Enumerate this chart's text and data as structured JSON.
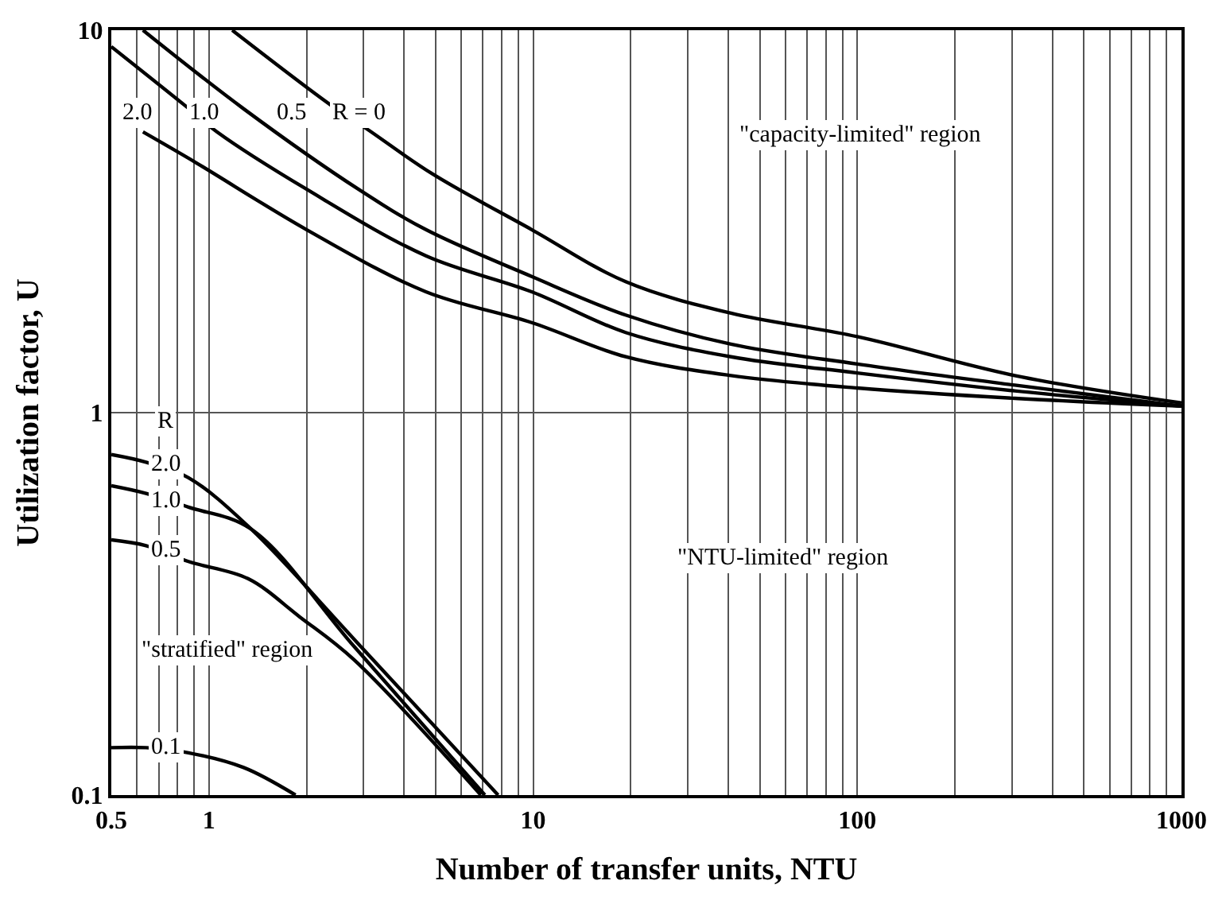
{
  "chart_data": {
    "type": "line",
    "xlabel": "Number of transfer units, NTU",
    "ylabel": "Utilization factor, U",
    "log": "xy",
    "grid": true,
    "line_style": "solid",
    "marker": "none",
    "xlim": [
      0.5,
      1000
    ],
    "ylim": [
      0.1,
      10
    ],
    "yticks": [
      0.1,
      1,
      10
    ],
    "xticks": [
      0.5,
      {
        "value": 0.6,
        "label": null
      },
      {
        "value": 0.7,
        "label": null
      },
      {
        "value": 0.8,
        "label": null
      },
      {
        "value": 0.9,
        "label": null
      },
      1,
      {
        "value": 2,
        "label": null
      },
      {
        "value": 3,
        "label": null
      },
      {
        "value": 4,
        "label": null
      },
      {
        "value": 5,
        "label": null
      },
      {
        "value": 6,
        "label": null
      },
      {
        "value": 7,
        "label": null
      },
      {
        "value": 8,
        "label": null
      },
      {
        "value": 9,
        "label": null
      },
      10,
      {
        "value": 20,
        "label": null
      },
      {
        "value": 30,
        "label": null
      },
      {
        "value": 40,
        "label": null
      },
      {
        "value": 50,
        "label": null
      },
      {
        "value": 60,
        "label": null
      },
      {
        "value": 70,
        "label": null
      },
      {
        "value": 80,
        "label": null
      },
      {
        "value": 90,
        "label": null
      },
      100,
      {
        "value": 200,
        "label": null
      },
      {
        "value": 300,
        "label": null
      },
      {
        "value": 400,
        "label": null
      },
      {
        "value": 500,
        "label": null
      },
      {
        "value": 600,
        "label": null
      },
      {
        "value": 700,
        "label": null
      },
      {
        "value": 800,
        "label": null
      },
      {
        "value": 900,
        "label": null
      },
      1000
    ],
    "series": [
      {
        "color": "#000000",
        "x": [
          1.18,
          2.39,
          3.06,
          4.89,
          9.9,
          19.3,
          40.8,
          100,
          306,
          1000
        ],
        "values": [
          10,
          6.35,
          5.53,
          4.21,
          3.01,
          2.2,
          1.82,
          1.58,
          1.25,
          1.06
        ]
      },
      {
        "color": "#000000",
        "x": [
          0.626,
          1.28,
          2.89,
          4.67,
          9.9,
          19.3,
          40.8,
          100,
          306,
          1000
        ],
        "values": [
          10,
          6.23,
          3.84,
          3.01,
          2.27,
          1.8,
          1.51,
          1.34,
          1.18,
          1.04
        ]
      },
      {
        "color": "#000000",
        "x": [
          0.5,
          0.845,
          1.06,
          2.0,
          4.67,
          9.9,
          19.3,
          40.8,
          100,
          306,
          1000
        ],
        "values": [
          9.06,
          6.35,
          5.42,
          3.84,
          2.57,
          2.07,
          1.62,
          1.4,
          1.27,
          1.14,
          1.04
        ]
      },
      {
        "color": "#000000",
        "x": [
          0.626,
          0.914,
          2.0,
          4.67,
          9.9,
          19.3,
          40.8,
          100,
          306,
          1000
        ],
        "values": [
          5.42,
          4.5,
          3.01,
          2.07,
          1.72,
          1.4,
          1.25,
          1.16,
          1.09,
          1.04
        ]
      },
      {
        "color": "#000000",
        "x": [
          0.5,
          0.64,
          0.865,
          1.35,
          2.8,
          7.8
        ],
        "values": [
          0.777,
          0.742,
          0.676,
          0.496,
          0.256,
          0.1
        ]
      },
      {
        "color": "#000000",
        "x": [
          0.5,
          0.64,
          0.865,
          1.35,
          2.8,
          7.1
        ],
        "values": [
          0.644,
          0.615,
          0.566,
          0.496,
          0.245,
          0.1
        ]
      },
      {
        "color": "#000000",
        "x": [
          0.5,
          0.64,
          0.865,
          1.32,
          1.91,
          2.8,
          6.9
        ],
        "values": [
          0.465,
          0.449,
          0.408,
          0.368,
          0.292,
          0.226,
          0.1
        ]
      },
      {
        "color": "#000000",
        "x": [
          0.5,
          0.64,
          0.865,
          1.28,
          1.85
        ],
        "values": [
          0.133,
          0.133,
          0.129,
          0.118,
          0.1
        ]
      }
    ],
    "annotations": [
      {
        "text": "R = 0",
        "x": 2.89,
        "y": 6.07
      },
      {
        "text": "0.5",
        "x": 1.81,
        "y": 6.07
      },
      {
        "text": "1.0",
        "x": 0.967,
        "y": 6.07
      },
      {
        "text": "2.0",
        "x": 0.605,
        "y": 6.07
      },
      {
        "text": "R",
        "x": 0.73,
        "y": 0.945
      },
      {
        "text": "2.0",
        "x": 0.74,
        "y": 0.73
      },
      {
        "text": "1.0",
        "x": 0.74,
        "y": 0.59
      },
      {
        "text": "0.5",
        "x": 0.74,
        "y": 0.435
      },
      {
        "text": "0.1",
        "x": 0.74,
        "y": 0.133
      },
      "\"capacity-limited\" region",
      "\"NTU-limited\" region",
      "\"stratified\" region"
    ]
  }
}
